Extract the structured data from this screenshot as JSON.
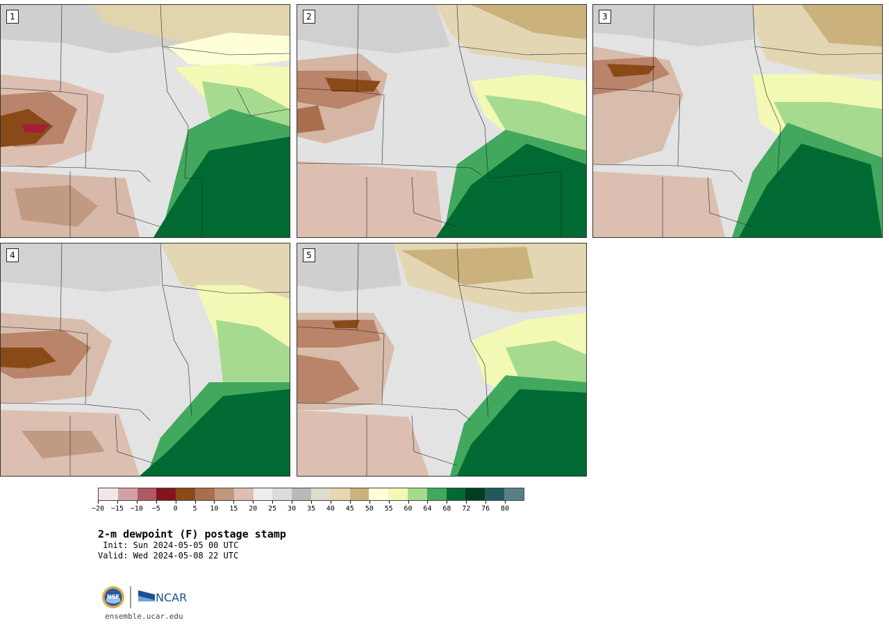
{
  "panels": [
    {
      "number": "1"
    },
    {
      "number": "2"
    },
    {
      "number": "3"
    },
    {
      "number": "4"
    },
    {
      "number": "5"
    }
  ],
  "colorbar": {
    "colors": [
      "#f4e6e8",
      "#d3a0a6",
      "#b05a63",
      "#84141e",
      "#8a4a18",
      "#a86f4c",
      "#c2977e",
      "#dcbfb0",
      "#ededed",
      "#dcdcdc",
      "#b9b9b9",
      "#e0dccd",
      "#e6d6b2",
      "#cbb27c",
      "#fefed8",
      "#f3f9b4",
      "#a6db8f",
      "#42a85d",
      "#006a33",
      "#003d22",
      "#215a5c",
      "#587f86"
    ],
    "tick_labels": [
      "-20",
      "-15",
      "-10",
      "-5",
      "0",
      "5",
      "10",
      "15",
      "20",
      "25",
      "30",
      "35",
      "40",
      "45",
      "50",
      "55",
      "60",
      "64",
      "68",
      "72",
      "76",
      "80"
    ]
  },
  "title": "2-m dewpoint (F) postage stamp",
  "init": " Init: Sun 2024-05-05 00 UTC",
  "valid": "Valid: Wed 2024-05-08 22 UTC",
  "logo": {
    "nsf": "NSF",
    "ncar": "NCAR"
  },
  "site": "ensemble.ucar.edu"
}
